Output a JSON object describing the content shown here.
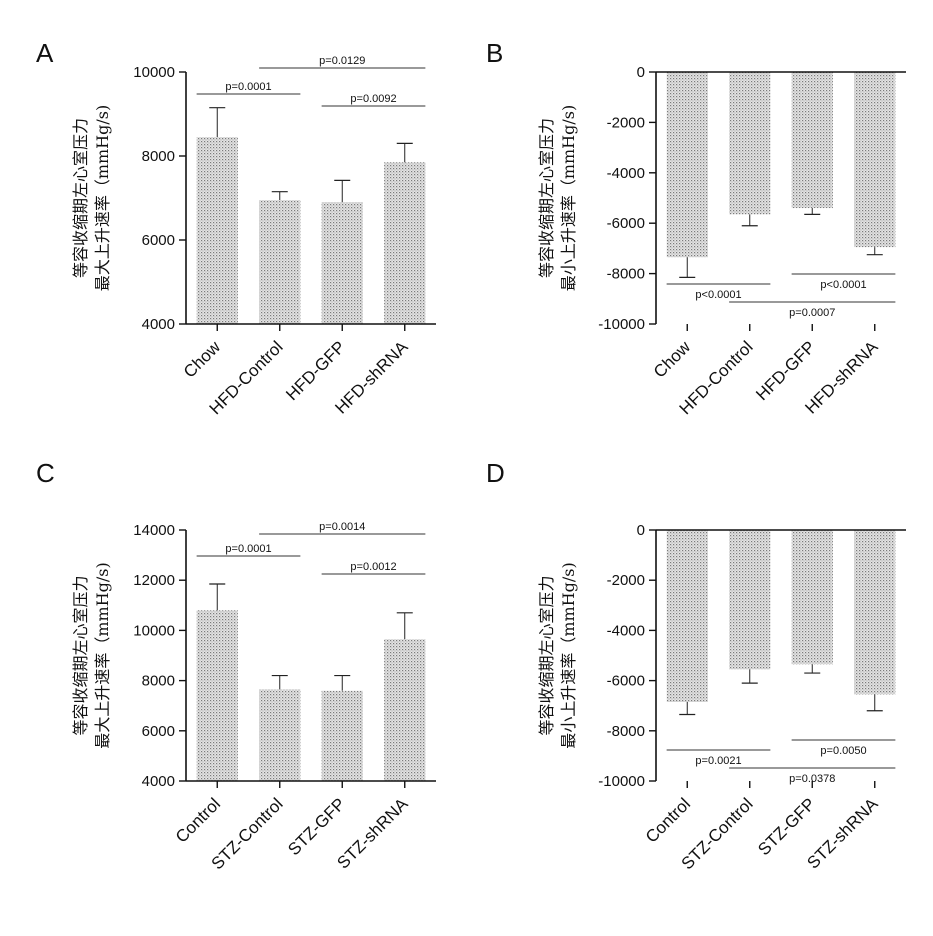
{
  "panels": [
    {
      "letter": "A",
      "chart_data": {
        "type": "bar",
        "categories": [
          "Chow",
          "HFD-Control",
          "HFD-GFP",
          "HFD-shRNA"
        ],
        "values": [
          8450,
          6950,
          6900,
          7850
        ],
        "errors": [
          700,
          200,
          520,
          450
        ],
        "ylim": [
          4000,
          10000
        ],
        "yticks": [
          4000,
          6000,
          8000,
          10000
        ],
        "ytick_labels": [
          "4000",
          "6000",
          "8000",
          "10000"
        ],
        "ylabel_line1": "等容收缩期左心室压力",
        "ylabel_line2": "最大上升速率（mmHg/s)",
        "annotations": [
          {
            "from": 0,
            "to": 1,
            "text": "p=0.0001"
          },
          {
            "from": 1,
            "to": 3,
            "text": "p=0.0129"
          },
          {
            "from": 2,
            "to": 3,
            "text": "p=0.0092"
          }
        ]
      }
    },
    {
      "letter": "B",
      "chart_data": {
        "type": "bar",
        "categories": [
          "Chow",
          "HFD-Control",
          "HFD-GFP",
          "HFD-shRNA"
        ],
        "values": [
          -7350,
          -5650,
          -5400,
          -6950
        ],
        "errors": [
          800,
          450,
          250,
          300
        ],
        "ylim": [
          -10000,
          0
        ],
        "yticks": [
          -10000,
          -8000,
          -6000,
          -4000,
          -2000,
          0
        ],
        "ytick_labels": [
          "-10000",
          "-8000",
          "-6000",
          "-4000",
          "-2000",
          "0"
        ],
        "ylabel_line1": "等容收缩期左心室压力",
        "ylabel_line2": "最小上升速率（mmHg/s)",
        "annotations": [
          {
            "from": 0,
            "to": 1,
            "text": "p<0.0001"
          },
          {
            "from": 2,
            "to": 3,
            "text": "p<0.0001"
          },
          {
            "from": 1,
            "to": 3,
            "text": "p=0.0007"
          }
        ]
      }
    },
    {
      "letter": "C",
      "chart_data": {
        "type": "bar",
        "categories": [
          "Control",
          "STZ-Control",
          "STZ-GFP",
          "STZ-shRNA"
        ],
        "values": [
          10800,
          7650,
          7600,
          9650
        ],
        "errors": [
          1050,
          550,
          600,
          1050
        ],
        "ylim": [
          4000,
          14000
        ],
        "yticks": [
          4000,
          6000,
          8000,
          10000,
          12000,
          14000
        ],
        "ytick_labels": [
          "4000",
          "6000",
          "8000",
          "10000",
          "12000",
          "14000"
        ],
        "ylabel_line1": "等容收缩期左心室压力",
        "ylabel_line2": "最大上升速率（mmHg/s)",
        "annotations": [
          {
            "from": 0,
            "to": 1,
            "text": "p=0.0001"
          },
          {
            "from": 1,
            "to": 3,
            "text": "p=0.0014"
          },
          {
            "from": 2,
            "to": 3,
            "text": "p=0.0012"
          }
        ]
      }
    },
    {
      "letter": "D",
      "chart_data": {
        "type": "bar",
        "categories": [
          "Control",
          "STZ-Control",
          "STZ-GFP",
          "STZ-shRNA"
        ],
        "values": [
          -6850,
          -5550,
          -5350,
          -6550
        ],
        "errors": [
          500,
          550,
          350,
          650
        ],
        "ylim": [
          -10000,
          0
        ],
        "yticks": [
          -10000,
          -8000,
          -6000,
          -4000,
          -2000,
          0
        ],
        "ytick_labels": [
          "-10000",
          "-8000",
          "-6000",
          "-4000",
          "-2000",
          "0"
        ],
        "ylabel_line1": "等容收缩期左心室压力",
        "ylabel_line2": "最小上升速率（mmHg/s)",
        "annotations": [
          {
            "from": 0,
            "to": 1,
            "text": "p=0.0021"
          },
          {
            "from": 2,
            "to": 3,
            "text": "p=0.0050"
          },
          {
            "from": 1,
            "to": 3,
            "text": "p=0.0378"
          }
        ]
      }
    }
  ],
  "colors": {
    "bar_fill": "#c9c9c9",
    "axis": "#111111"
  }
}
